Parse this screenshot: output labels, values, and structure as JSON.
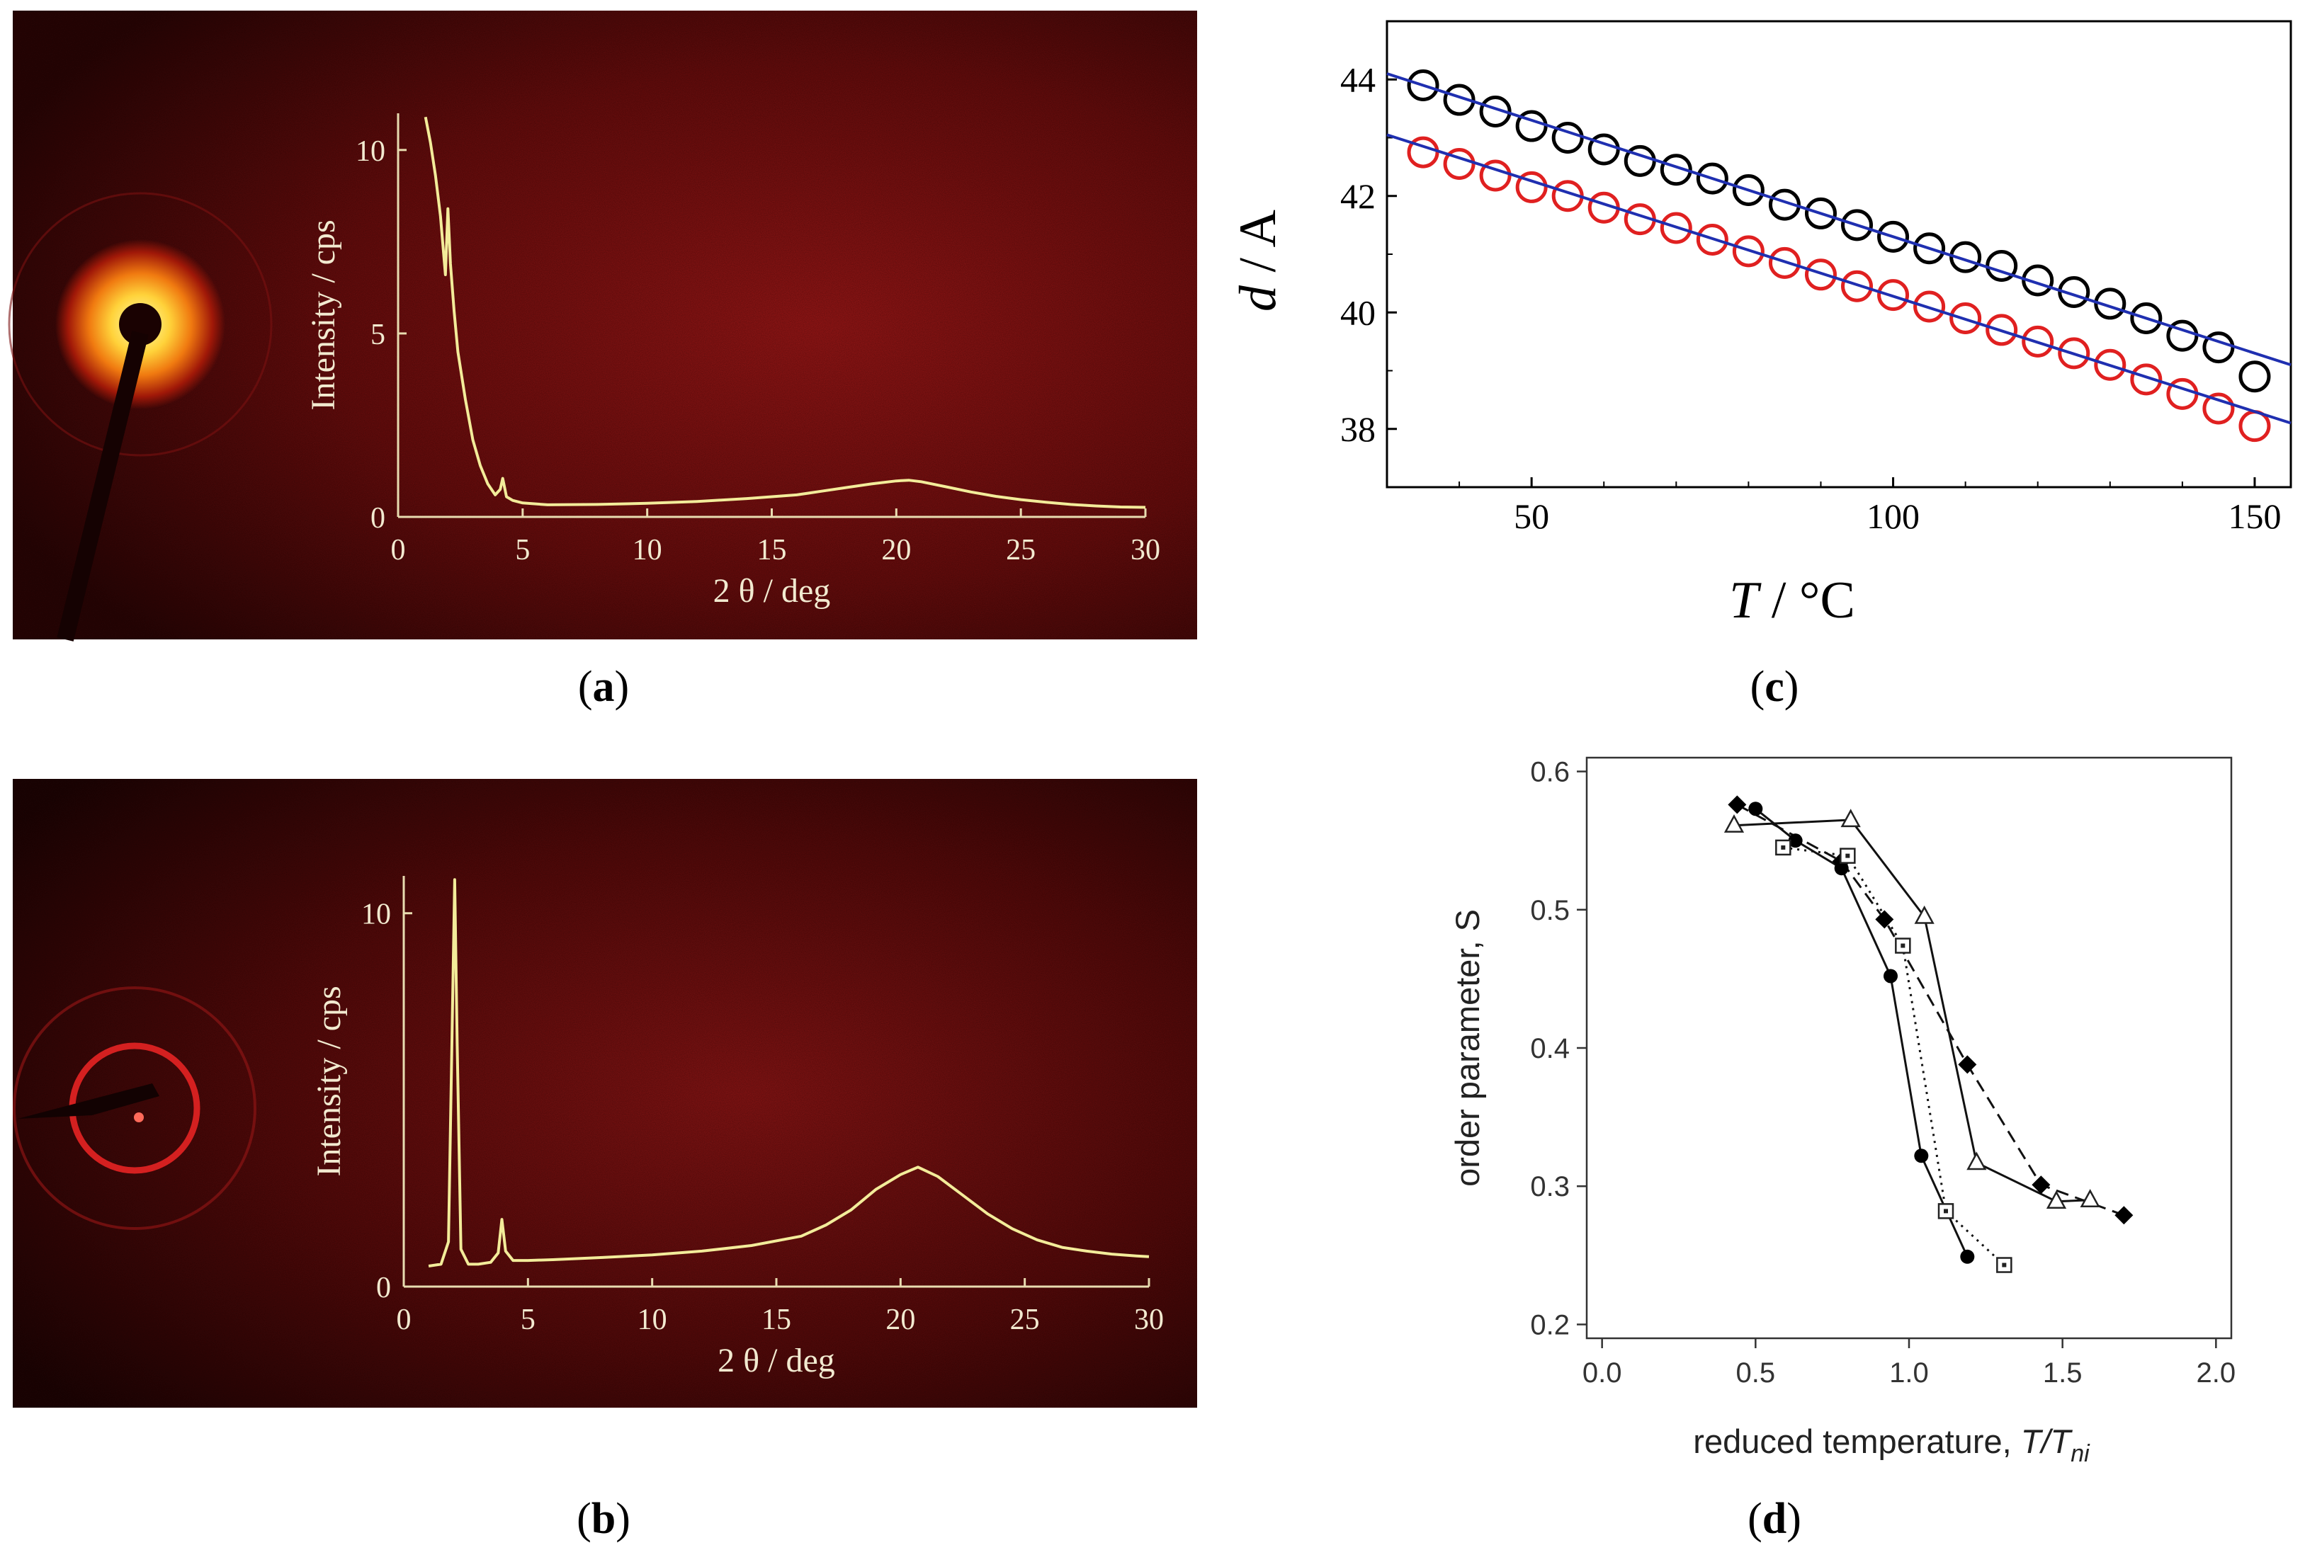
{
  "chart_data": [
    {
      "id": "a",
      "type": "line",
      "caption": "(a)",
      "caption_letter": "a",
      "xlabel": "2 θ / deg",
      "ylabel": "Intensity / cps",
      "xlim": [
        0,
        30
      ],
      "ylim": [
        0,
        11
      ],
      "xticks": [
        0,
        5,
        10,
        15,
        20,
        25,
        30
      ],
      "yticks": [
        0,
        5,
        10
      ],
      "colors": {
        "trace": "#f3ec9a",
        "axis": "#e8dcb0",
        "bg_dark": "#3a0505",
        "bg_mid": "#8a1212"
      },
      "series": [
        {
          "name": "pattern",
          "x": [
            1.1,
            1.3,
            1.5,
            1.7,
            1.9,
            2.0,
            2.1,
            2.25,
            2.4,
            2.7,
            3.0,
            3.3,
            3.6,
            3.9,
            4.1,
            4.2,
            4.35,
            4.6,
            5.0,
            6,
            8,
            10,
            12,
            14,
            16,
            17,
            18,
            19,
            20,
            20.5,
            21,
            22,
            23,
            24,
            25,
            26,
            27,
            28,
            29,
            30
          ],
          "y": [
            10.9,
            10.2,
            9.3,
            8.2,
            6.6,
            8.4,
            6.9,
            5.6,
            4.5,
            3.2,
            2.1,
            1.4,
            0.9,
            0.6,
            0.75,
            1.05,
            0.55,
            0.45,
            0.38,
            0.33,
            0.34,
            0.37,
            0.42,
            0.5,
            0.6,
            0.7,
            0.8,
            0.9,
            0.98,
            1.0,
            0.96,
            0.82,
            0.68,
            0.56,
            0.47,
            0.4,
            0.34,
            0.3,
            0.27,
            0.26
          ]
        }
      ]
    },
    {
      "id": "b",
      "type": "line",
      "caption": "(b)",
      "caption_letter": "b",
      "xlabel": "2 θ / deg",
      "ylabel": "Intensity / cps",
      "xlim": [
        0,
        30
      ],
      "ylim": [
        0,
        11
      ],
      "xticks": [
        0,
        5,
        10,
        15,
        20,
        25,
        30
      ],
      "yticks": [
        0,
        10
      ],
      "colors": {
        "trace": "#f3ec9a",
        "axis": "#e8dcb0",
        "ring": "#d42020"
      },
      "series": [
        {
          "name": "pattern",
          "x": [
            1.0,
            1.5,
            1.8,
            1.95,
            2.05,
            2.15,
            2.3,
            2.6,
            3.0,
            3.5,
            3.8,
            3.95,
            4.1,
            4.4,
            5,
            6,
            8,
            10,
            12,
            14,
            16,
            17,
            18,
            19,
            20,
            20.7,
            21.5,
            22.5,
            23.5,
            24.5,
            25.5,
            26.5,
            27.5,
            28.5,
            29.5,
            30
          ],
          "y": [
            0.55,
            0.6,
            1.2,
            7.0,
            10.9,
            6.5,
            1.0,
            0.6,
            0.6,
            0.65,
            0.9,
            1.8,
            0.95,
            0.7,
            0.7,
            0.72,
            0.78,
            0.85,
            0.95,
            1.1,
            1.35,
            1.65,
            2.05,
            2.6,
            3.0,
            3.2,
            2.95,
            2.45,
            1.95,
            1.55,
            1.25,
            1.05,
            0.95,
            0.87,
            0.82,
            0.8
          ]
        }
      ]
    },
    {
      "id": "c",
      "type": "scatter",
      "caption": "(c)",
      "caption_letter": "c",
      "xlabel_italic": "T",
      "xlabel_rest": " / °C",
      "ylabel_italic": "d",
      "ylabel_rest": " / A",
      "xlim": [
        30,
        155
      ],
      "ylim": [
        37,
        45
      ],
      "xticks": [
        50,
        100,
        150
      ],
      "yticks": [
        38,
        40,
        42,
        44
      ],
      "fit_color": "#1f2fb0",
      "series": [
        {
          "name": "black",
          "color": "#000000",
          "x": [
            35,
            40,
            45,
            50,
            55,
            60,
            65,
            70,
            75,
            80,
            85,
            90,
            95,
            100,
            105,
            110,
            115,
            120,
            125,
            130,
            135,
            140,
            145,
            150
          ],
          "y": [
            43.9,
            43.65,
            43.45,
            43.2,
            43.0,
            42.8,
            42.6,
            42.45,
            42.3,
            42.1,
            41.85,
            41.7,
            41.5,
            41.3,
            41.1,
            40.95,
            40.8,
            40.55,
            40.35,
            40.15,
            39.9,
            39.6,
            39.4,
            38.9
          ],
          "fit": [
            [
              30,
              44.1
            ],
            [
              155,
              39.1
            ]
          ]
        },
        {
          "name": "red",
          "color": "#e02020",
          "x": [
            35,
            40,
            45,
            50,
            55,
            60,
            65,
            70,
            75,
            80,
            85,
            90,
            95,
            100,
            105,
            110,
            115,
            120,
            125,
            130,
            135,
            140,
            145,
            150
          ],
          "y": [
            42.75,
            42.55,
            42.35,
            42.15,
            42.0,
            41.8,
            41.6,
            41.45,
            41.25,
            41.05,
            40.85,
            40.65,
            40.45,
            40.3,
            40.1,
            39.9,
            39.7,
            39.5,
            39.3,
            39.1,
            38.85,
            38.6,
            38.35,
            38.05
          ],
          "fit": [
            [
              30,
              43.05
            ],
            [
              155,
              38.1
            ]
          ]
        }
      ]
    },
    {
      "id": "d",
      "type": "line",
      "caption": "(d)",
      "caption_letter": "d",
      "xlabel_plain": "reduced temperature, ",
      "xlabel_italic": "T/T",
      "xlabel_sub": "ni",
      "ylabel": "order parameter, S",
      "xlim": [
        -0.05,
        2.05
      ],
      "ylim": [
        0.19,
        0.61
      ],
      "xticks": [
        0.0,
        0.5,
        1.0,
        1.5,
        2.0
      ],
      "xtick_labels": [
        "0.0",
        "0.5",
        "1.0",
        "1.5",
        "2.0"
      ],
      "yticks": [
        0.2,
        0.3,
        0.4,
        0.5,
        0.6
      ],
      "ytick_labels": [
        "0.2",
        "0.3",
        "0.4",
        "0.5",
        "0.6"
      ],
      "series": [
        {
          "name": "filled circles",
          "marker": "circle-filled",
          "dash": "solid",
          "x": [
            0.5,
            0.63,
            0.78,
            0.94,
            1.04,
            1.19
          ],
          "y": [
            0.573,
            0.55,
            0.53,
            0.452,
            0.322,
            0.249
          ]
        },
        {
          "name": "filled diamonds",
          "marker": "diamond-filled",
          "dash": "dashed",
          "x": [
            0.44,
            0.78,
            0.92,
            1.19,
            1.43,
            1.7
          ],
          "y": [
            0.576,
            0.535,
            0.493,
            0.388,
            0.301,
            0.279
          ]
        },
        {
          "name": "open triangles",
          "marker": "triangle-open",
          "dash": "solid",
          "x": [
            0.43,
            0.81,
            1.05,
            1.22,
            1.48,
            1.59
          ],
          "y": [
            0.561,
            0.565,
            0.495,
            0.317,
            0.289,
            0.29
          ]
        },
        {
          "name": "open squares",
          "marker": "square-open",
          "dash": "dotted",
          "x": [
            0.59,
            0.8,
            0.98,
            1.12,
            1.31
          ],
          "y": [
            0.545,
            0.539,
            0.474,
            0.282,
            0.243
          ]
        }
      ]
    }
  ]
}
